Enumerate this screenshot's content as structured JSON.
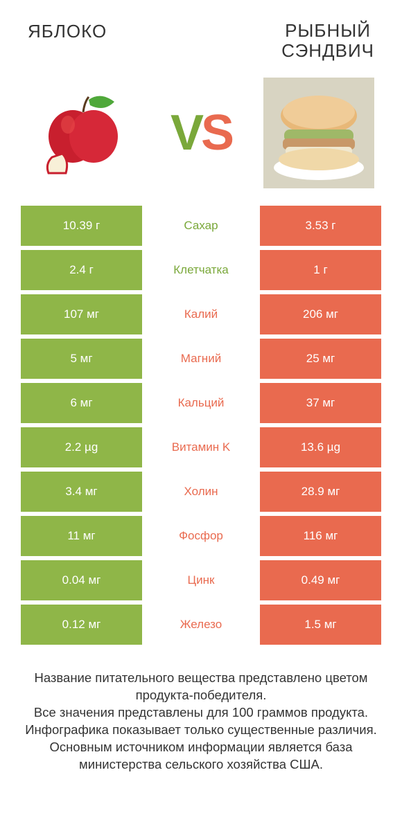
{
  "colors": {
    "green": "#8fb648",
    "orange": "#e96a4f",
    "green_text": "#7aa83a",
    "orange_text": "#e96a4f"
  },
  "titles": {
    "left": "ЯБЛОКО",
    "right_line1": "РЫБНЫЙ",
    "right_line2": "СЭНДВИЧ"
  },
  "vs": {
    "v": "V",
    "s": "S"
  },
  "rows": [
    {
      "left": "10.39 г",
      "label": "Сахар",
      "right": "3.53 г",
      "winner": "left"
    },
    {
      "left": "2.4 г",
      "label": "Клетчатка",
      "right": "1 г",
      "winner": "left"
    },
    {
      "left": "107 мг",
      "label": "Калий",
      "right": "206 мг",
      "winner": "right"
    },
    {
      "left": "5 мг",
      "label": "Магний",
      "right": "25 мг",
      "winner": "right"
    },
    {
      "left": "6 мг",
      "label": "Кальций",
      "right": "37 мг",
      "winner": "right"
    },
    {
      "left": "2.2 µg",
      "label": "Витамин K",
      "right": "13.6 µg",
      "winner": "right"
    },
    {
      "left": "3.4 мг",
      "label": "Холин",
      "right": "28.9 мг",
      "winner": "right"
    },
    {
      "left": "11 мг",
      "label": "Фосфор",
      "right": "116 мг",
      "winner": "right"
    },
    {
      "left": "0.04 мг",
      "label": "Цинк",
      "right": "0.49 мг",
      "winner": "right"
    },
    {
      "left": "0.12 мг",
      "label": "Железо",
      "right": "1.5 мг",
      "winner": "right"
    }
  ],
  "footer": {
    "line1": "Название питательного вещества представлено цветом продукта-победителя.",
    "line2": "Все значения представлены для 100 граммов продукта.",
    "line3": "Инфографика показывает только существенные различия.",
    "line4": "Основным источником информации является база министерства сельского хозяйства США."
  }
}
